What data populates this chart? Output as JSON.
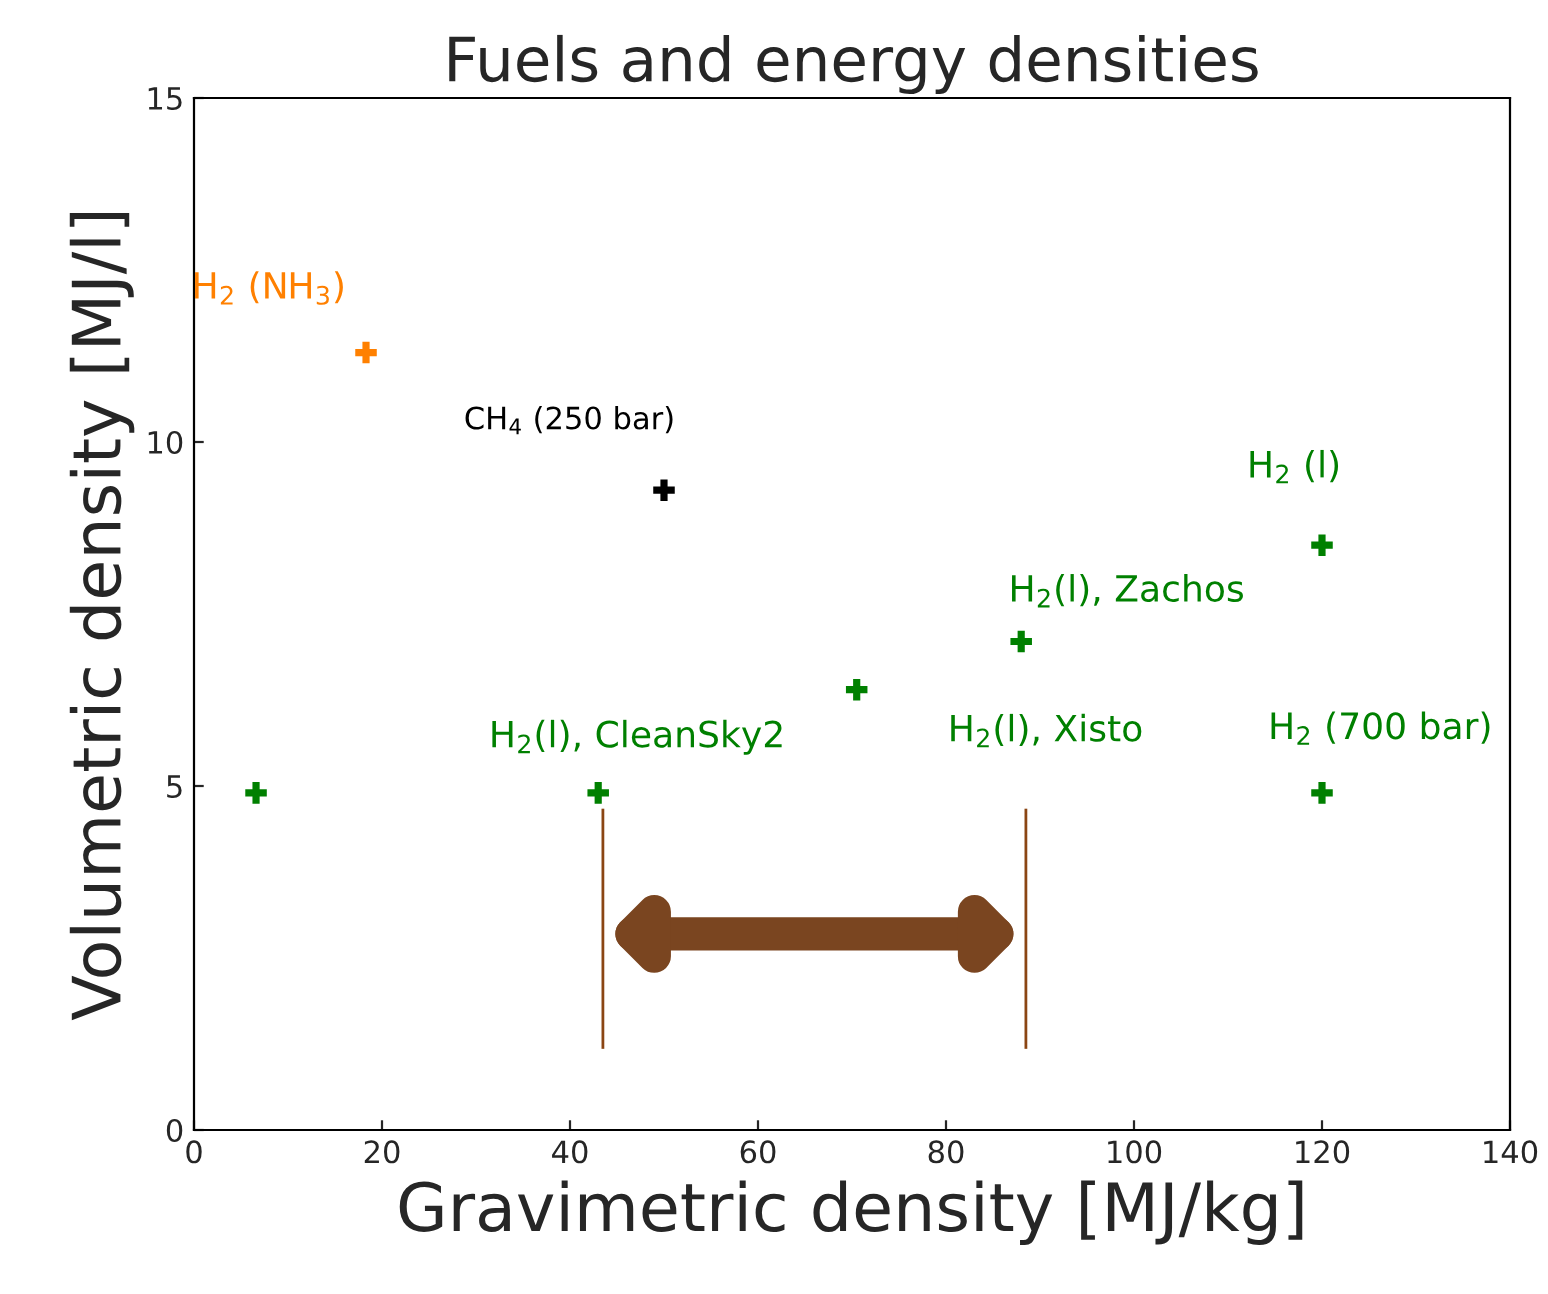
{
  "chart_data": {
    "type": "scatter",
    "title": "Fuels and energy densities",
    "xlabel": "Gravimetric density [MJ/kg]",
    "ylabel": "Volumetric density [MJ/l]",
    "xlim": [
      0,
      140
    ],
    "xticks": [
      0,
      20,
      40,
      60,
      80,
      100,
      120,
      140
    ],
    "ylim": [
      0,
      15
    ],
    "yticks": [
      0,
      5,
      10,
      15
    ],
    "grid": false,
    "legend": false,
    "marker": "cross",
    "series": [
      {
        "name": "H$_{2}$ (NH$_{3}$)",
        "color": "#ff8000",
        "x": [
          18.3
        ],
        "values": [
          11.3
        ]
      },
      {
        "name": "CH$_{4}$ (250 bar)",
        "color": "#000000",
        "x": [
          50
        ],
        "values": [
          9.3
        ]
      },
      {
        "name": "H$_{2}$ (l)",
        "color": "#008000",
        "x": [
          120
        ],
        "values": [
          8.5
        ]
      },
      {
        "name": "H$_{2}$(l), Zachos",
        "color": "#008000",
        "x": [
          88
        ],
        "values": [
          7.1
        ]
      },
      {
        "name": "H$_{2}$(l), Xisto",
        "color": "#008000",
        "x": [
          70.5
        ],
        "values": [
          6.4
        ]
      },
      {
        "name": "H$_{2}$(l), CleanSky2",
        "color": "#008000",
        "x": [
          43
        ],
        "values": [
          4.9
        ]
      },
      {
        "name": "H$_{2}$ (700 bar)",
        "color": "#008000",
        "x": [
          120
        ],
        "values": [
          4.9
        ]
      },
      {
        "color": "#008000",
        "x": [
          6.6
        ],
        "values": [
          4.9
        ]
      }
    ],
    "ref_lines": [
      {
        "axis": "x",
        "value": 43.5,
        "color": "#8b4513"
      },
      {
        "axis": "x",
        "value": 88.5,
        "color": "#8b4513"
      }
    ]
  }
}
